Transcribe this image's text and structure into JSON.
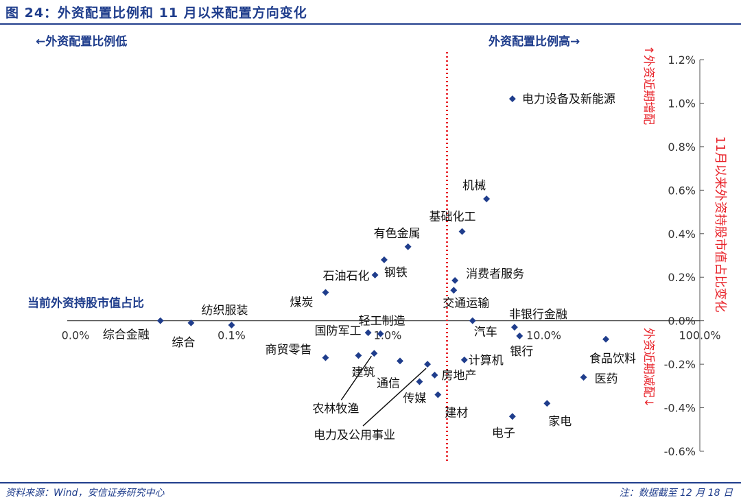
{
  "figure": {
    "title": "图 24：外资配置比例和 11 月以来配置方向变化",
    "source": "资料来源：Wind，安信证券研究中心",
    "note": "注：数据截至 12 月 18 日"
  },
  "colors": {
    "brand": "#1f3d8c",
    "accent_red": "#e8232a",
    "marker": "#1f3d8c"
  },
  "chart_data": {
    "type": "scatter",
    "x_scale": "log",
    "xlabel": "当前外资持股市值占比",
    "ylabel": "11月以来外资持股市值占比变化",
    "x_tick_labels": [
      "0.0%",
      "0.1%",
      "1.0%",
      "10.0%",
      "100.0%"
    ],
    "x_ticks": [
      0.01,
      0.1,
      1,
      10,
      100
    ],
    "xlim": [
      0.01,
      100
    ],
    "y_tick_labels": [
      "1.2%",
      "1.0%",
      "0.8%",
      "0.6%",
      "0.4%",
      "0.2%",
      "0.0%",
      "-0.2%",
      "-0.4%",
      "-0.6%"
    ],
    "y_ticks": [
      1.2,
      1.0,
      0.8,
      0.6,
      0.4,
      0.2,
      0.0,
      -0.2,
      -0.4,
      -0.6
    ],
    "ylim": [
      -0.6,
      1.2
    ],
    "divider_x": 2.4,
    "annotations": {
      "left_low": "←外资配置比例低",
      "right_high": "外资配置比例高→",
      "top_increase": "↑外资近期增配",
      "bottom_decrease": "外资近期减配↓"
    },
    "points": [
      {
        "label": "电力设备及新能源",
        "x": 6.3,
        "y": 1.02
      },
      {
        "label": "机械",
        "x": 4.3,
        "y": 0.56
      },
      {
        "label": "基础化工",
        "x": 3.0,
        "y": 0.41
      },
      {
        "label": "有色金属",
        "x": 1.35,
        "y": 0.34
      },
      {
        "label": "钢铁",
        "x": 0.95,
        "y": 0.28
      },
      {
        "label": "石油石化",
        "x": 0.83,
        "y": 0.21
      },
      {
        "label": "消费者服务",
        "x": 2.7,
        "y": 0.185
      },
      {
        "label": "交通运输",
        "x": 2.65,
        "y": 0.14
      },
      {
        "label": "煤炭",
        "x": 0.4,
        "y": 0.13
      },
      {
        "label": "纺织服装",
        "x": 0.1,
        "y": -0.02
      },
      {
        "label": "综合",
        "x": 0.055,
        "y": -0.01
      },
      {
        "label": "综合金融",
        "x": 0.035,
        "y": 0.0
      },
      {
        "label": "轻工制造",
        "x": 0.9,
        "y": -0.06
      },
      {
        "label": "汽车",
        "x": 3.5,
        "y": 0.0
      },
      {
        "label": "国防军工",
        "x": 0.75,
        "y": -0.055
      },
      {
        "label": "非银行金融",
        "x": 6.5,
        "y": -0.03
      },
      {
        "label": "银行",
        "x": 7.0,
        "y": -0.07
      },
      {
        "label": "食品饮料",
        "x": 25.0,
        "y": -0.085
      },
      {
        "label": "商贸零售",
        "x": 0.4,
        "y": -0.17
      },
      {
        "label": "建筑",
        "x": 0.65,
        "y": -0.16
      },
      {
        "label": "农林牧渔",
        "x": 0.82,
        "y": -0.15
      },
      {
        "label": "通信",
        "x": 1.2,
        "y": -0.185
      },
      {
        "label": "电力及公用事业",
        "x": 1.8,
        "y": -0.2
      },
      {
        "label": "计算机",
        "x": 3.1,
        "y": -0.18
      },
      {
        "label": "传媒",
        "x": 1.6,
        "y": -0.28
      },
      {
        "label": "房地产",
        "x": 2.0,
        "y": -0.25
      },
      {
        "label": "建材",
        "x": 2.1,
        "y": -0.34
      },
      {
        "label": "医药",
        "x": 18.0,
        "y": -0.26
      },
      {
        "label": "家电",
        "x": 10.5,
        "y": -0.38
      },
      {
        "label": "电子",
        "x": 6.3,
        "y": -0.44
      }
    ]
  }
}
